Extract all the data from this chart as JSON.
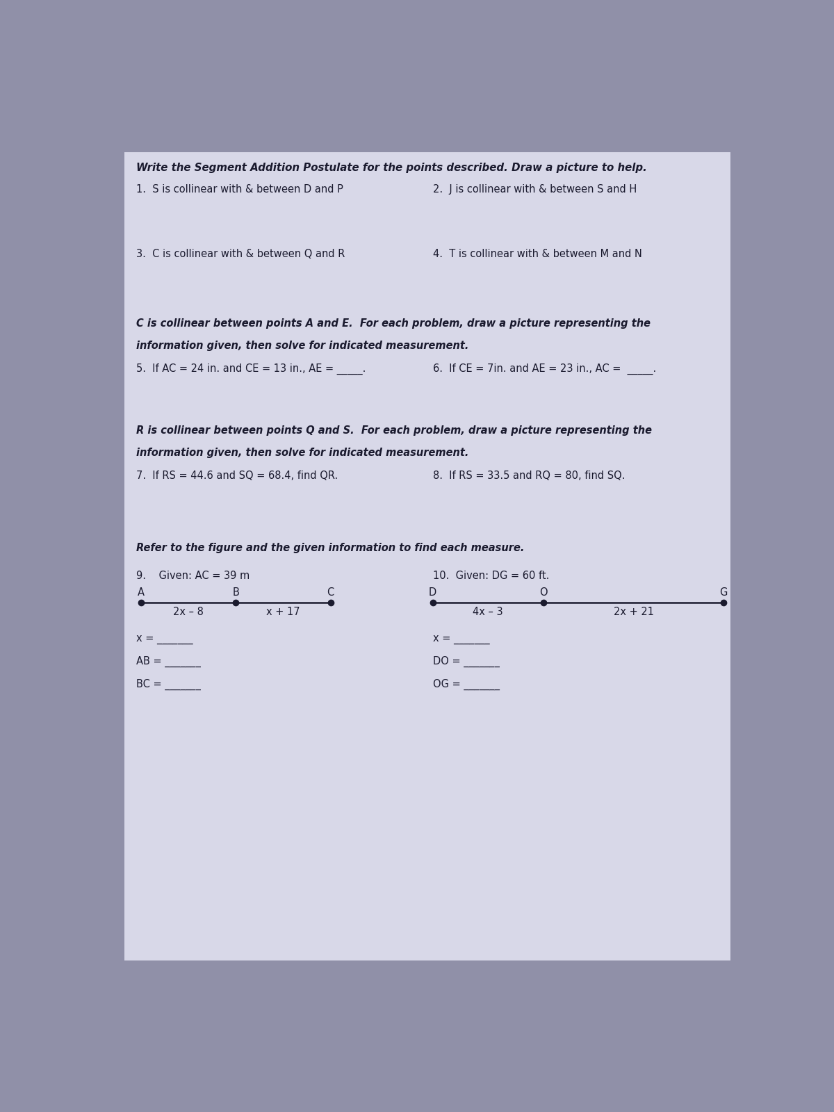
{
  "bg_color": "#9090a8",
  "paper_color": "#d8d8e8",
  "text_color": "#1a1a2e",
  "title_line1": "Write the Segment Addition Postulate for the points described. Draw a picture to help.",
  "prob1": "1.  S is collinear with & between D and P",
  "prob2": "2.  J is collinear with & between S and H",
  "prob3": "3.  C is collinear with & between Q and R",
  "prob4": "4.  T is collinear with & between M and N",
  "sec2_line1": "C is collinear between points A and E.  For each problem, draw a picture representing the",
  "sec2_line2": "information given, then solve for indicated measurement.",
  "prob5": "5.  If AC = 24 in. and CE = 13 in., AE = _____.",
  "prob6": "6.  If CE = 7in. and AE = 23 in., AC =  _____.",
  "sec3_line1": "R is collinear between points Q and S.  For each problem, draw a picture representing the",
  "sec3_line2": "information given, then solve for indicated measurement.",
  "prob7": "7.  If RS = 44.6 and SQ = 68.4, find QR.",
  "prob8": "8.  If RS = 33.5 and RQ = 80, find SQ.",
  "sec4_intro": "Refer to the figure and the given information to find each measure.",
  "prob9_given": "9.    Given: AC = 39 m",
  "prob10_given": "10.  Given: DG = 60 ft.",
  "prob9_pt_labels": [
    "A",
    "B",
    "C"
  ],
  "prob9_seg_labels": [
    "2x – 8",
    "x + 17"
  ],
  "prob9_answers": [
    "x = ",
    "AB = ",
    "BC = "
  ],
  "prob10_pt_labels": [
    "D",
    "O",
    "G"
  ],
  "prob10_seg_labels": [
    "4x – 3",
    "2x + 21"
  ],
  "prob10_answers": [
    "x = ",
    "DO = ",
    "OG = "
  ]
}
